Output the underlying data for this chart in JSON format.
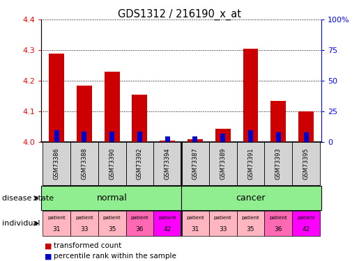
{
  "title": "GDS1312 / 216190_x_at",
  "samples": [
    "GSM73386",
    "GSM73388",
    "GSM73390",
    "GSM73392",
    "GSM73394",
    "GSM73387",
    "GSM73389",
    "GSM73391",
    "GSM73393",
    "GSM73395"
  ],
  "transformed_count": [
    4.29,
    4.185,
    4.23,
    4.155,
    4.005,
    4.01,
    4.045,
    4.305,
    4.135,
    4.1
  ],
  "percentile_rank": [
    10,
    9,
    9,
    9,
    5,
    5,
    7,
    10,
    8,
    8
  ],
  "ylim_left": [
    4.0,
    4.4
  ],
  "ylim_right": [
    0,
    100
  ],
  "yticks_left": [
    4.0,
    4.1,
    4.2,
    4.3,
    4.4
  ],
  "yticks_right": [
    0,
    25,
    50,
    75,
    100
  ],
  "ytick_labels_right": [
    "0",
    "25",
    "50",
    "75",
    "100%"
  ],
  "individuals": [
    "31",
    "33",
    "35",
    "36",
    "42",
    "31",
    "33",
    "35",
    "36",
    "42"
  ],
  "individual_colors": [
    "#FFB6C1",
    "#FFB6C1",
    "#FFB6C1",
    "#FF69B4",
    "#FF00FF",
    "#FFB6C1",
    "#FFB6C1",
    "#FFB6C1",
    "#FF69B4",
    "#FF00FF"
  ],
  "bar_color_red": "#CC0000",
  "bar_color_blue": "#0000CC",
  "grid_color": "black",
  "grid_linestyle": ":"
}
